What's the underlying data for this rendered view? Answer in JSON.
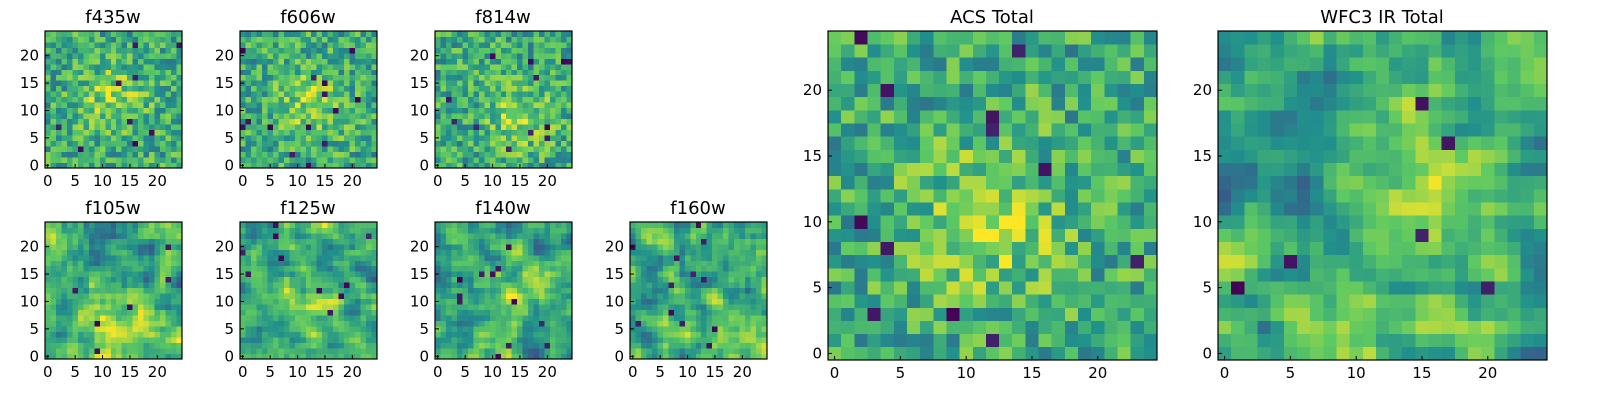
{
  "figure": {
    "colormap": [
      "#440154",
      "#3b528b",
      "#21918c",
      "#5ec962",
      "#fde725"
    ]
  },
  "chart_data": [
    {
      "type": "heatmap",
      "title": "f435w",
      "grid_size": 25,
      "xlim": [
        0,
        24
      ],
      "ylim": [
        0,
        24
      ],
      "xticks": [
        0,
        5,
        10,
        15,
        20
      ],
      "yticks": [
        0,
        5,
        10,
        15,
        20
      ],
      "pattern": "noise",
      "seed": 11,
      "bright_center": [
        12,
        12
      ],
      "dark_spots": 10
    },
    {
      "type": "heatmap",
      "title": "f606w",
      "grid_size": 25,
      "xlim": [
        0,
        24
      ],
      "ylim": [
        0,
        24
      ],
      "xticks": [
        0,
        5,
        10,
        15,
        20
      ],
      "yticks": [
        0,
        5,
        10,
        15,
        20
      ],
      "pattern": "noise",
      "seed": 23,
      "bright_center": [
        12,
        11
      ],
      "dark_spots": 14
    },
    {
      "type": "heatmap",
      "title": "f814w",
      "grid_size": 25,
      "xlim": [
        0,
        24
      ],
      "ylim": [
        0,
        24
      ],
      "xticks": [
        0,
        5,
        10,
        15,
        20
      ],
      "yticks": [
        0,
        5,
        10,
        15,
        20
      ],
      "pattern": "noise",
      "seed": 37,
      "bright_center": [
        15,
        9
      ],
      "dark_spots": 12
    },
    {
      "type": "heatmap",
      "title": "f105w",
      "grid_size": 25,
      "xlim": [
        0,
        24
      ],
      "ylim": [
        0,
        24
      ],
      "xticks": [
        0,
        5,
        10,
        15,
        20
      ],
      "yticks": [
        0,
        5,
        10,
        15,
        20
      ],
      "pattern": "smooth",
      "seed": 41,
      "bright_center": [
        12,
        8
      ],
      "dark_spots": 6
    },
    {
      "type": "heatmap",
      "title": "f125w",
      "grid_size": 25,
      "xlim": [
        0,
        24
      ],
      "ylim": [
        0,
        24
      ],
      "xticks": [
        0,
        5,
        10,
        15,
        20
      ],
      "yticks": [
        0,
        5,
        10,
        15,
        20
      ],
      "pattern": "smooth",
      "seed": 53,
      "bright_center": [
        14,
        10
      ],
      "dark_spots": 10
    },
    {
      "type": "heatmap",
      "title": "f140w",
      "grid_size": 25,
      "xlim": [
        0,
        24
      ],
      "ylim": [
        0,
        24
      ],
      "xticks": [
        0,
        5,
        10,
        15,
        20
      ],
      "yticks": [
        0,
        5,
        10,
        15,
        20
      ],
      "pattern": "smooth",
      "seed": 67,
      "bright_center": [
        13,
        12
      ],
      "dark_spots": 12
    },
    {
      "type": "heatmap",
      "title": "f160w",
      "grid_size": 25,
      "xlim": [
        0,
        24
      ],
      "ylim": [
        0,
        24
      ],
      "xticks": [
        0,
        5,
        10,
        15,
        20
      ],
      "yticks": [
        0,
        5,
        10,
        15,
        20
      ],
      "pattern": "smooth",
      "seed": 79,
      "bright_center": [
        19,
        6
      ],
      "dark_spots": 12
    },
    {
      "type": "heatmap",
      "title": "ACS Total",
      "grid_size": 25,
      "xlim": [
        0,
        24
      ],
      "ylim": [
        0,
        24
      ],
      "xticks": [
        0,
        5,
        10,
        15,
        20
      ],
      "yticks": [
        0,
        5,
        10,
        15,
        20
      ],
      "pattern": "noise",
      "seed": 97,
      "bright_center": [
        12,
        10
      ],
      "dark_spots": 12
    },
    {
      "type": "heatmap",
      "title": "WFC3 IR Total",
      "grid_size": 25,
      "xlim": [
        0,
        24
      ],
      "ylim": [
        0,
        24
      ],
      "xticks": [
        0,
        5,
        10,
        15,
        20
      ],
      "yticks": [
        0,
        5,
        10,
        15,
        20
      ],
      "pattern": "smooth",
      "seed": 113,
      "bright_center": [
        15,
        10
      ],
      "dark_spots": 6
    }
  ]
}
